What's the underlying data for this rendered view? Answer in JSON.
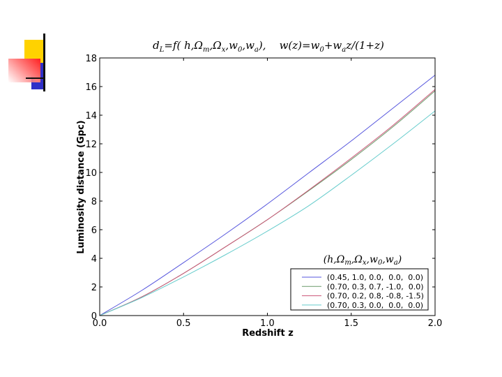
{
  "chart_data": {
    "type": "line",
    "title": "d_L = f(h, Ω_m, Ω_x, w_0, w_a),    w(z) = w_0 + w_a z/(1+z)",
    "xlabel": "Redshift z",
    "ylabel": "Luminosity distance (Gpc)",
    "xlim": [
      0.0,
      2.0
    ],
    "ylim": [
      0,
      18
    ],
    "xticks": [
      "0.0",
      "0.5",
      "1.0",
      "1.5",
      "2.0"
    ],
    "yticks": [
      "0",
      "2",
      "4",
      "6",
      "8",
      "10",
      "12",
      "14",
      "16",
      "18"
    ],
    "grid": false,
    "legend_title": "(h, Ω_m, Ω_x, w_0, w_a)",
    "legend_position": "lower right",
    "x": [
      0.0,
      0.25,
      0.5,
      0.75,
      1.0,
      1.25,
      1.5,
      1.75,
      2.0
    ],
    "series": [
      {
        "name": "(0.45, 1.0, 0.0,  0.0,  0.0)",
        "color": "#5555dd",
        "values": [
          0,
          1.75,
          3.7,
          5.7,
          7.8,
          10.0,
          12.2,
          14.5,
          16.8
        ]
      },
      {
        "name": "(0.70, 0.3, 0.7, -1.0,  0.0)",
        "color": "#6a9a6a",
        "values": [
          0,
          1.3,
          2.95,
          4.8,
          6.7,
          8.75,
          10.9,
          13.2,
          15.7
        ]
      },
      {
        "name": "(0.70, 0.2, 0.8, -0.8, -1.5)",
        "color": "#cc5577",
        "values": [
          0,
          1.3,
          2.95,
          4.8,
          6.7,
          8.8,
          11.0,
          13.3,
          15.8
        ]
      },
      {
        "name": "(0.70, 0.3, 0.0,  0.0,  0.0)",
        "color": "#66cccc",
        "values": [
          0,
          1.25,
          2.7,
          4.25,
          5.9,
          7.7,
          9.8,
          12.0,
          14.3
        ]
      }
    ]
  },
  "title_text": "d_L=f( h,Ω_m,Ω_x,w_0,w_a),    w(z)=w_0+w_a z/(1+z)",
  "legend": {
    "title": "(h,Ω_m,Ω_x,w_0,w_a)",
    "entries": [
      "(0.45, 1.0, 0.0,  0.0,  0.0)",
      "(0.70, 0.3, 0.7, -1.0,  0.0)",
      "(0.70, 0.2, 0.8, -0.8, -1.5)",
      "(0.70, 0.3, 0.0,  0.0,  0.0)"
    ]
  }
}
